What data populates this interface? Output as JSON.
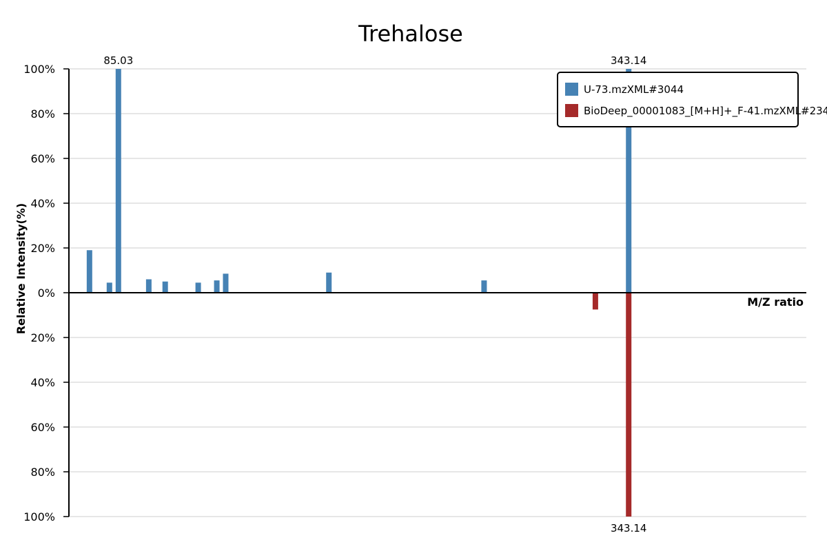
{
  "chart_data": {
    "type": "bar",
    "title": "Trehalose",
    "xlabel": "M/Z ratio",
    "ylabel": "Relative Intensity(%)",
    "ylim_top": [
      0,
      100
    ],
    "ylim_bottom": [
      0,
      100
    ],
    "y_ticks_top": [
      "0%",
      "20%",
      "40%",
      "60%",
      "80%",
      "100%"
    ],
    "y_ticks_bottom": [
      "20%",
      "40%",
      "60%",
      "80%",
      "100%"
    ],
    "x_range": [
      60,
      433
    ],
    "series": [
      {
        "name": "U-73.mzXML#3044",
        "color": "#4682b4",
        "direction": "up",
        "peaks": [
          {
            "mz": 70.4,
            "intensity": 19
          },
          {
            "mz": 80.5,
            "intensity": 4.5
          },
          {
            "mz": 85.03,
            "intensity": 100,
            "label": "85.03"
          },
          {
            "mz": 100.4,
            "intensity": 6
          },
          {
            "mz": 108.7,
            "intensity": 5
          },
          {
            "mz": 125.4,
            "intensity": 4.5
          },
          {
            "mz": 134.8,
            "intensity": 5.5
          },
          {
            "mz": 139.3,
            "intensity": 8.5
          },
          {
            "mz": 191.5,
            "intensity": 9
          },
          {
            "mz": 270.0,
            "intensity": 5.5
          },
          {
            "mz": 343.14,
            "intensity": 100,
            "label": "343.14"
          }
        ]
      },
      {
        "name": "BioDeep_00001083_[M+H]+_F-41.mzXML#2347",
        "color": "#a52a2a",
        "direction": "down",
        "peaks": [
          {
            "mz": 326.3,
            "intensity": 7.5
          },
          {
            "mz": 343.14,
            "intensity": 100,
            "label": "343.14"
          }
        ]
      }
    ],
    "legend_position": "top-right",
    "grid": true
  }
}
